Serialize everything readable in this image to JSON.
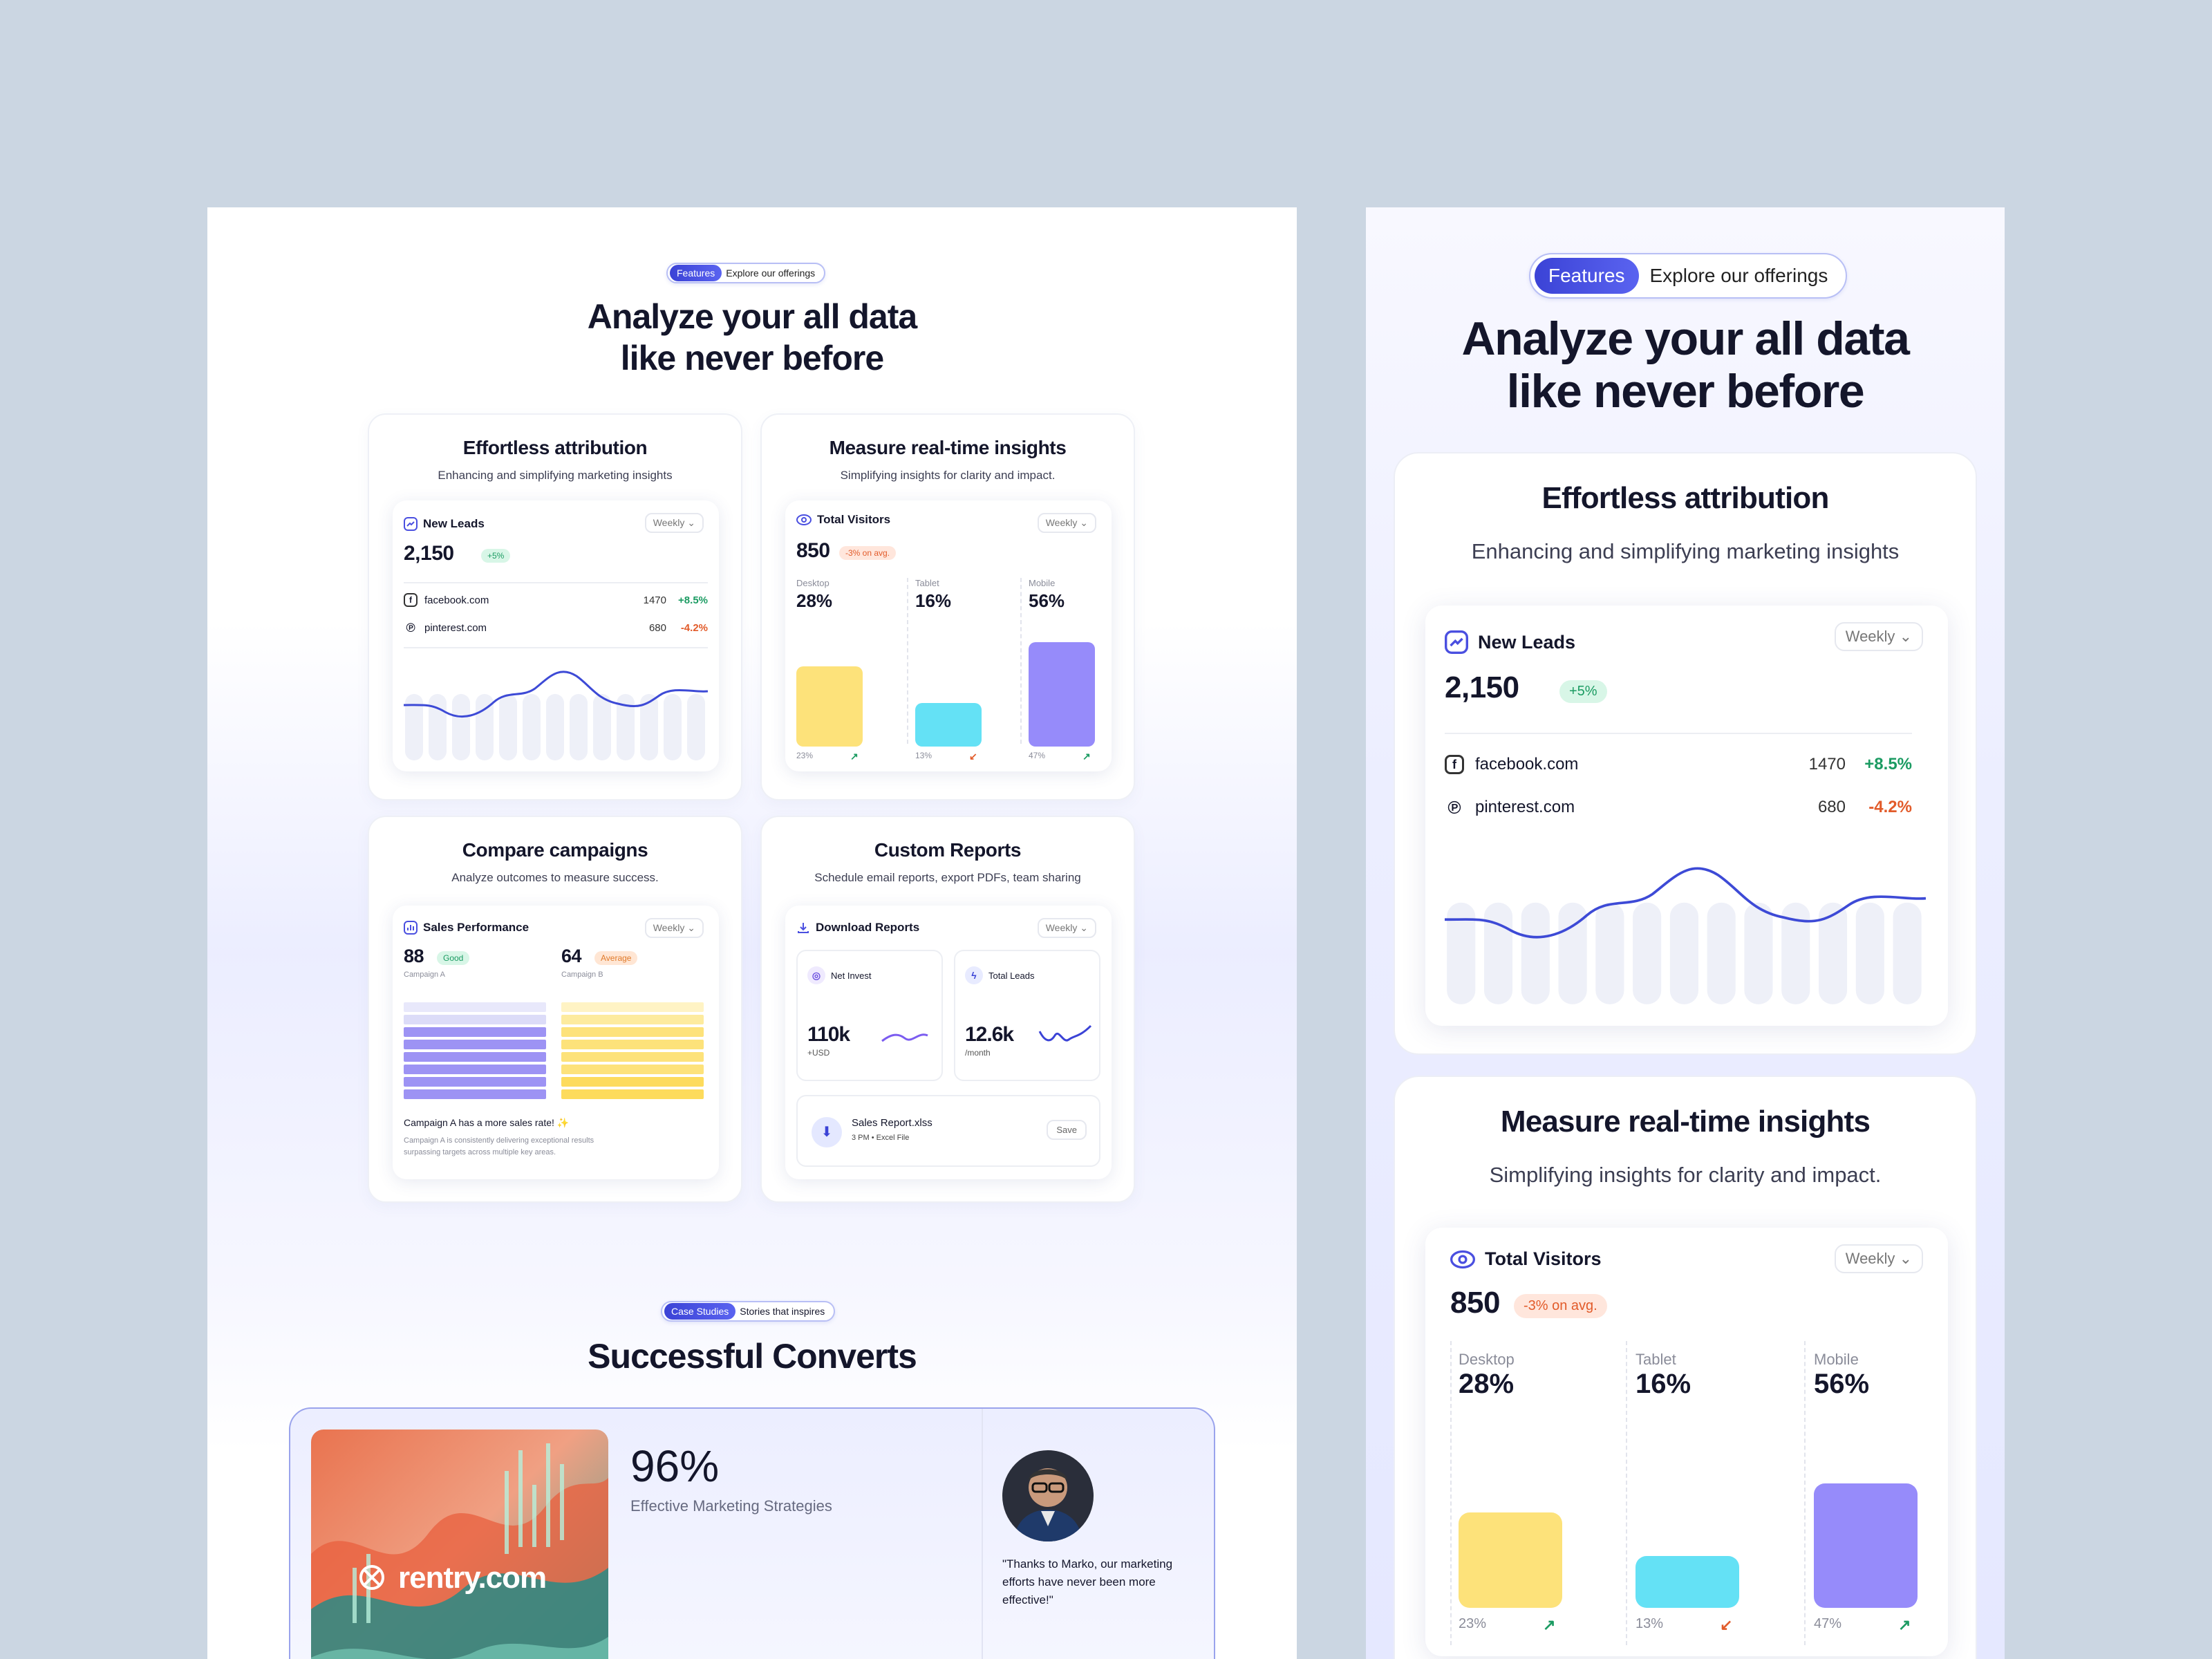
{
  "features": {
    "tag": "Features",
    "tag_text": "Explore our offerings",
    "title_line1": "Analyze your all data",
    "title_line2": "like never before"
  },
  "attribution": {
    "title": "Effortless attribution",
    "subtitle": "Enhancing and simplifying marketing insights",
    "widget_title": "New Leads",
    "period": "Weekly",
    "value": "2,150",
    "change": "+5%",
    "sources": [
      {
        "name": "facebook.com",
        "count": "1470",
        "change": "+8.5%"
      },
      {
        "name": "pinterest.com",
        "count": "680",
        "change": "-4.2%"
      }
    ]
  },
  "insights": {
    "title": "Measure real-time insights",
    "subtitle": "Simplifying insights for clarity and impact.",
    "widget_title": "Total Visitors",
    "period": "Weekly",
    "value": "850",
    "change": "-3% on avg.",
    "devices": [
      {
        "name": "Desktop",
        "pct": "28%",
        "foot": "23%",
        "color": "#fde27a",
        "level": 0.55
      },
      {
        "name": "Tablet",
        "pct": "16%",
        "foot": "13%",
        "color": "#64e1f5",
        "level": 0.3
      },
      {
        "name": "Mobile",
        "pct": "56%",
        "foot": "47%",
        "color": "#968bfa",
        "level": 0.72
      }
    ]
  },
  "compare": {
    "title": "Compare campaigns",
    "subtitle": "Analyze outcomes to measure success.",
    "widget_title": "Sales Performance",
    "period": "Weekly",
    "a_value": "88",
    "a_badge": "Good",
    "a_label": "Campaign A",
    "b_value": "64",
    "b_badge": "Average",
    "b_label": "Campaign B",
    "note": "Campaign A has a more sales rate! ✨",
    "note_sub_1": "Campaign A is consistently delivering exceptional results",
    "note_sub_2": "surpassing targets across multiple key areas."
  },
  "reports": {
    "title": "Custom Reports",
    "subtitle": "Schedule email reports, export PDFs, team sharing",
    "widget_title": "Download Reports",
    "period": "Weekly",
    "invest_label": "Net Invest",
    "invest_value": "110k",
    "invest_unit": "+USD",
    "leads_label": "Total Leads",
    "leads_value": "12.6k",
    "leads_unit": "/month",
    "file_name": "Sales Report.xlss",
    "file_time": "3 PM",
    "file_type": "Excel File",
    "save": "Save"
  },
  "case_studies": {
    "tag": "Case Studies",
    "tag_text": "Stories that inspires",
    "title": "Successful Converts",
    "brand": "rentry.com",
    "percent": "96%",
    "percent_label": "Effective Marketing Strategies",
    "quote": "\"Thanks to Marko, our marketing efforts have never been more effective!\""
  },
  "colors": {
    "accent": "#3b43d6",
    "positive": "#1b9b62",
    "negative": "#e25b2a",
    "purple": "#968bfa",
    "yellow": "#fde27a",
    "cyan": "#64e1f5"
  }
}
